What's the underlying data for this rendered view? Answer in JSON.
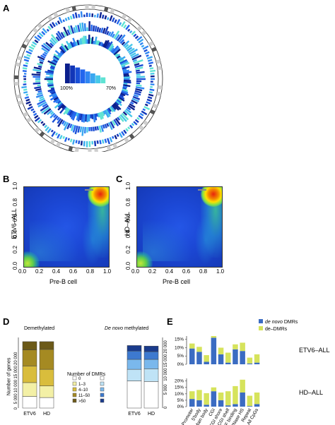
{
  "panels": {
    "a": "A",
    "b": "B",
    "c": "C",
    "d": "D",
    "e": "E"
  },
  "panel_a": {
    "legend_left": "100%",
    "legend_right": "70%",
    "palette": [
      "#0b1f8c",
      "#1236b8",
      "#1a4fd6",
      "#2266ee",
      "#2f86f2",
      "#3aa7f0",
      "#46c8e8",
      "#5fe3d3"
    ]
  },
  "panel_b": {
    "ylabel": "ETV6–ALL",
    "xlabel": "Pre-B cell",
    "ticks": [
      "0.0",
      "0.2",
      "0.4",
      "0.6",
      "0.8",
      "1.0"
    ]
  },
  "panel_c": {
    "ylabel": "HD–ALL",
    "xlabel": "Pre-B cell",
    "ticks": [
      "0.0",
      "0.2",
      "0.4",
      "0.6",
      "0.8",
      "1.0"
    ]
  },
  "panel_d": {
    "left_title": "Demethylated",
    "right_title_italic": "De novo",
    "right_title_rest": " methylated",
    "ylabel": "Number of genes",
    "yticks": [
      "20 000",
      "15 000",
      "10 000",
      "5 000",
      "0"
    ],
    "categories": [
      "ETV6",
      "HD"
    ],
    "legend_title": "Number of DMRs",
    "legend_items": [
      "0",
      "1–3",
      "4–10",
      "11–50",
      ">50"
    ],
    "demeth_colors": [
      "#ffffff",
      "#f3f0a6",
      "#d9bd3c",
      "#a58a22",
      "#6c5a18"
    ],
    "denovo_colors": [
      "#ffffff",
      "#bfe3f6",
      "#7ab8ec",
      "#3d79cf",
      "#1a3b8c"
    ],
    "demeth_stacks": [
      [
        4200,
        5000,
        6000,
        5800,
        3000
      ],
      [
        3800,
        4200,
        6000,
        7200,
        2800
      ]
    ],
    "denovo_stacks": [
      [
        9800,
        4200,
        3600,
        3000,
        2000
      ],
      [
        9600,
        4600,
        3400,
        2800,
        2000
      ]
    ]
  },
  "panel_e": {
    "legend": [
      "de novo",
      " DMRs",
      "de–DMRs"
    ],
    "legend_colors": [
      "#3b6cc2",
      "#d6e35c"
    ],
    "rows": [
      "ETV6–ALL",
      "HD–ALL"
    ],
    "yticks": [
      "15%",
      "10%",
      "5%",
      "0%"
    ],
    "yticks_lower": [
      "20%",
      "15%",
      "10%",
      "5%",
      "0%"
    ],
    "categories": [
      "Promoter",
      "5'body",
      "Main body",
      "CGI",
      "CGI shore",
      "CGI shelf",
      "TF binding",
      "DNase HS",
      "Repeat",
      "All CpGs"
    ]
  },
  "chart_data": [
    {
      "type": "bar",
      "title": "ETV6–ALL",
      "categories": [
        "Promoter",
        "5'body",
        "Main body",
        "CGI",
        "CGI shore",
        "CGI shelf",
        "TF binding",
        "DNase HS",
        "Repeat",
        "All CpGs"
      ],
      "ylim": [
        0,
        17
      ],
      "series": [
        {
          "name": "de novo DMRs",
          "values": [
            9.5,
            7.5,
            1.5,
            16,
            6,
            1,
            9,
            8,
            0.5,
            1
          ]
        },
        {
          "name": "de–DMRs",
          "values": [
            3,
            3,
            4,
            1,
            4,
            6,
            3,
            5,
            3.5,
            5
          ]
        }
      ]
    },
    {
      "type": "bar",
      "title": "HD–ALL",
      "categories": [
        "Promoter",
        "5'body",
        "Main body",
        "CGI",
        "CGI shore",
        "CGI shelf",
        "TF binding",
        "DNase HS",
        "Repeat",
        "All CpGs"
      ],
      "ylim": [
        0,
        22
      ],
      "series": [
        {
          "name": "de novo DMRs",
          "values": [
            6,
            5,
            1.5,
            12,
            5,
            1,
            2,
            11,
            0.5,
            2
          ]
        },
        {
          "name": "de–DMRs",
          "values": [
            6,
            8,
            9,
            3,
            6,
            11,
            14,
            10,
            8,
            9
          ]
        }
      ]
    }
  ]
}
